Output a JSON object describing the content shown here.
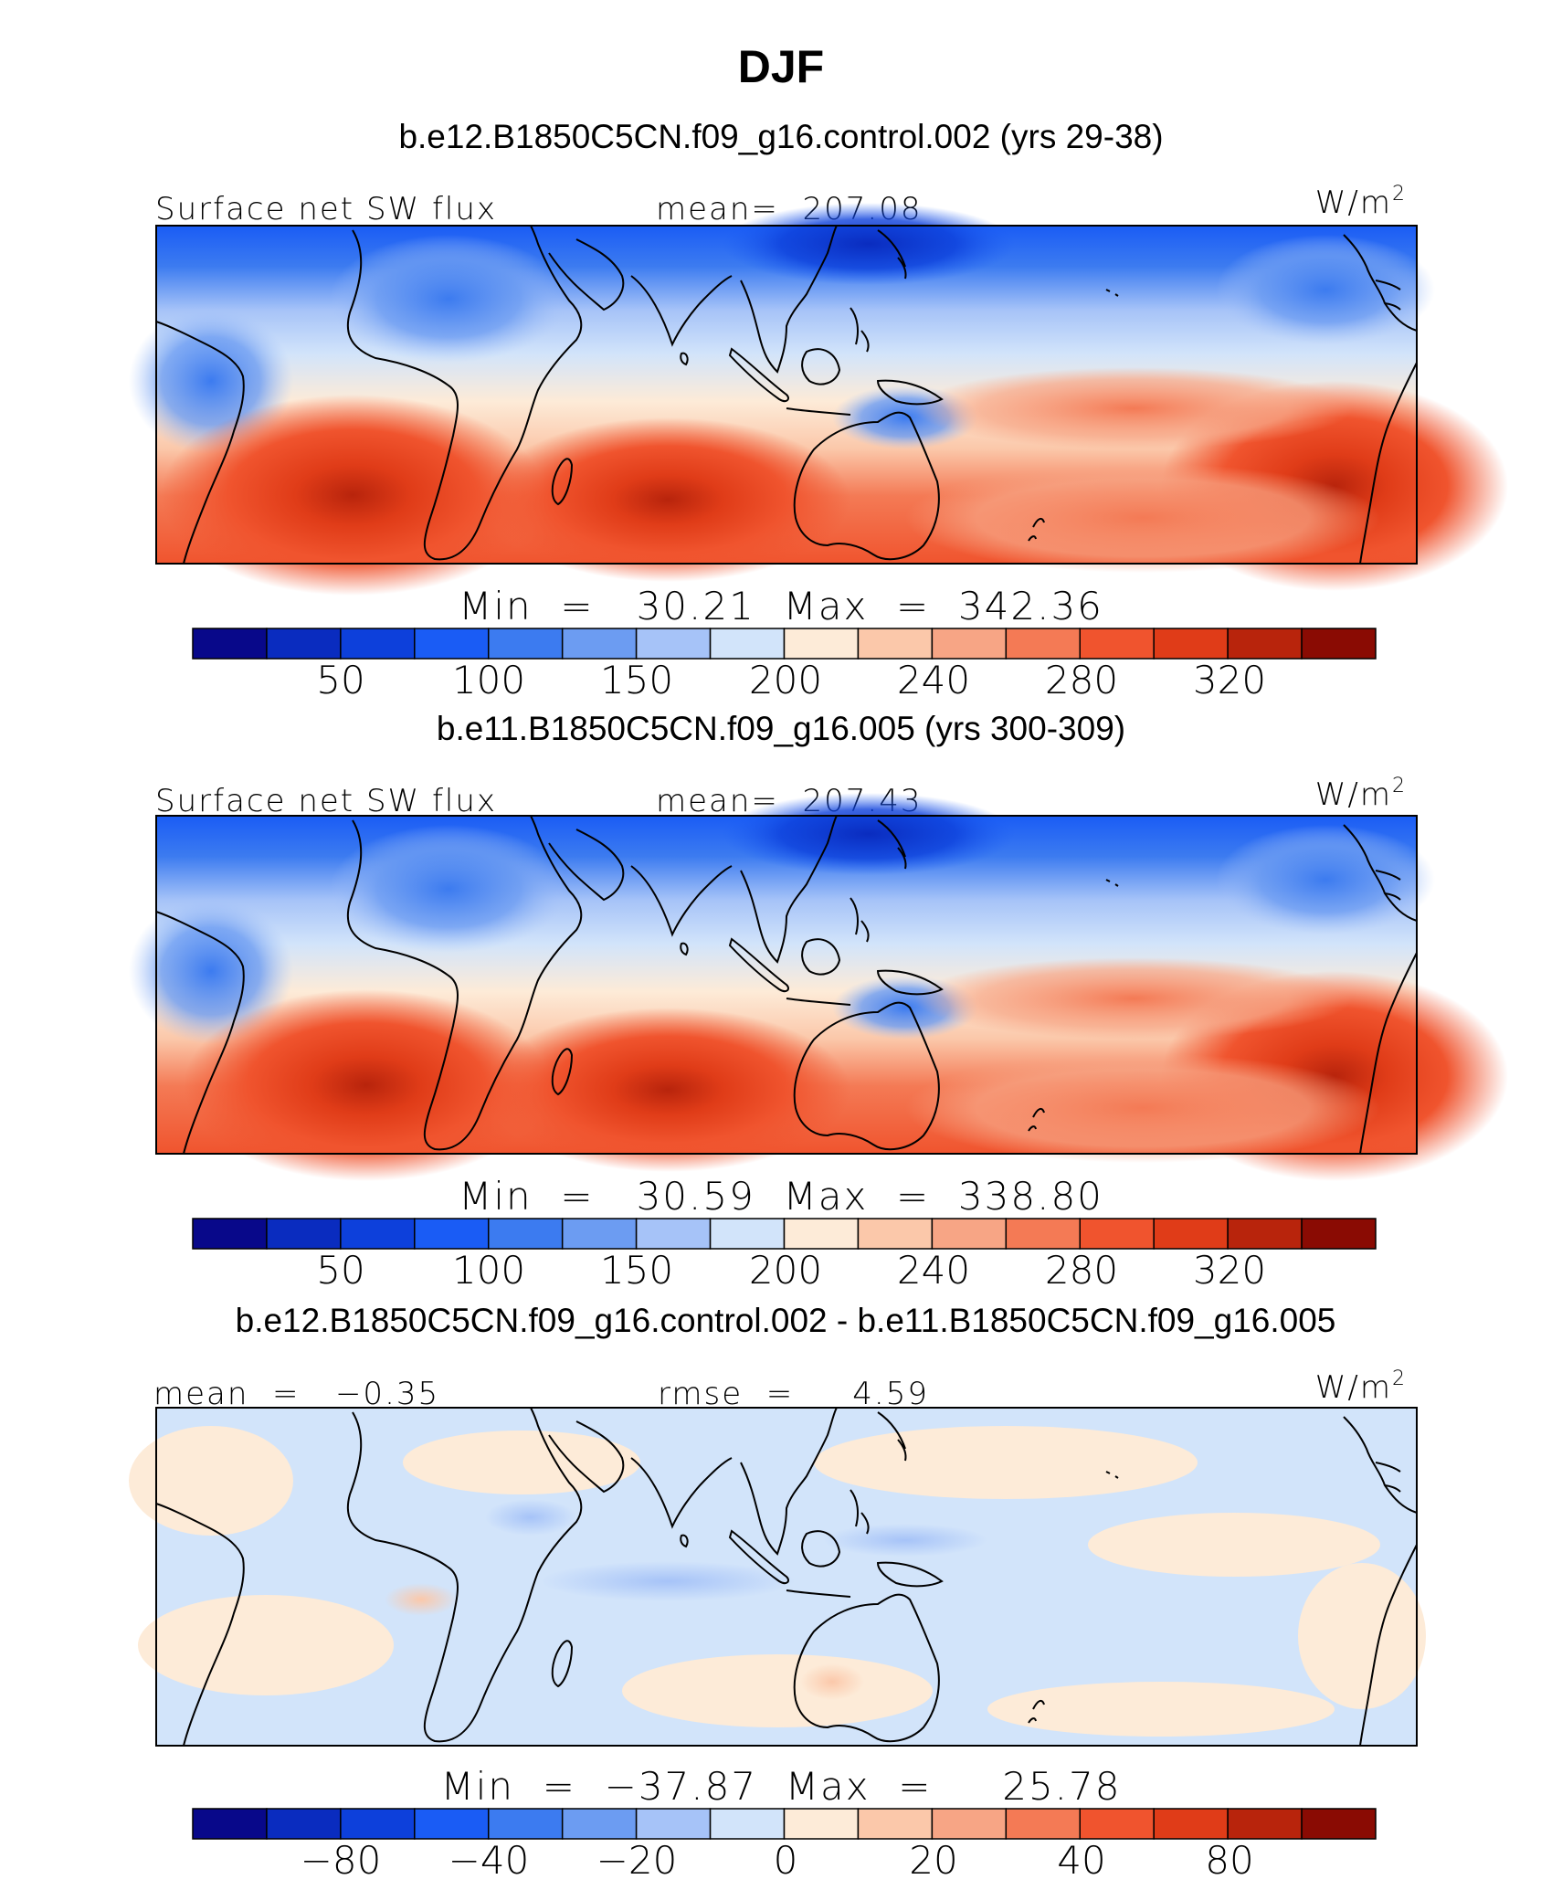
{
  "title": "DJF",
  "colors": {
    "abs_scale": [
      "#08088a",
      "#0a2cbf",
      "#0d40db",
      "#1a5cf5",
      "#3c7bf0",
      "#6c9cf2",
      "#a6c3f8",
      "#d2e4fa",
      "#fdebd8",
      "#fbc8aa",
      "#f7a585",
      "#f47a55",
      "#f0542e",
      "#e03c18",
      "#b8240c",
      "#8a0b03"
    ],
    "diff_scale": [
      "#08088a",
      "#0a2cbf",
      "#0d40db",
      "#1a5cf5",
      "#3c7bf0",
      "#6c9cf2",
      "#a6c3f8",
      "#d2e4fa",
      "#fdebd8",
      "#fbc8aa",
      "#f7a585",
      "#f47a55",
      "#f0542e",
      "#e03c18",
      "#b8240c",
      "#8a0b03"
    ]
  },
  "panels": [
    {
      "case_title": "b.e12.B1850C5CN.f09_g16.control.002 (yrs 29-38)",
      "left_label": "Surface net SW flux",
      "center_label": "mean=  207.08",
      "units": "W/m",
      "units_sup": "2",
      "minmax": "Min  =   30.21  Max  =  342.36",
      "colorbar_ticks": [
        "50",
        "100",
        "150",
        "200",
        "240",
        "280",
        "320"
      ]
    },
    {
      "case_title": "b.e11.B1850C5CN.f09_g16.005 (yrs 300-309)",
      "left_label": "Surface net SW flux",
      "center_label": "mean=  207.43",
      "units": "W/m",
      "units_sup": "2",
      "minmax": "Min  =   30.59  Max  =  338.80",
      "colorbar_ticks": [
        "50",
        "100",
        "150",
        "200",
        "240",
        "280",
        "320"
      ]
    },
    {
      "case_title": "b.e12.B1850C5CN.f09_g16.control.002 - b.e11.B1850C5CN.f09_g16.005",
      "left_label": "mean  =   −0.35",
      "center_label": "rmse  =     4.59",
      "units": "W/m",
      "units_sup": "2",
      "minmax": "Min  =  −37.87  Max  =     25.78",
      "colorbar_ticks": [
        "−80",
        "−40",
        "−20",
        "0",
        "20",
        "40",
        "80"
      ]
    }
  ],
  "chart_data": [
    {
      "type": "heatmap",
      "title": "b.e12.B1850C5CN.f09_g16.control.002 (yrs 29-38)",
      "variable": "Surface net SW flux",
      "units": "W/m2",
      "mean": 207.08,
      "min": 30.21,
      "max": 342.36,
      "colorbar_levels": [
        50,
        100,
        150,
        200,
        240,
        280,
        320
      ]
    },
    {
      "type": "heatmap",
      "title": "b.e11.B1850C5CN.f09_g16.005 (yrs 300-309)",
      "variable": "Surface net SW flux",
      "units": "W/m2",
      "mean": 207.43,
      "min": 30.59,
      "max": 338.8,
      "colorbar_levels": [
        50,
        100,
        150,
        200,
        240,
        280,
        320
      ]
    },
    {
      "type": "heatmap",
      "title": "b.e12.B1850C5CN.f09_g16.control.002 - b.e11.B1850C5CN.f09_g16.005",
      "units": "W/m2",
      "mean": -0.35,
      "rmse": 4.59,
      "min": -37.87,
      "max": 25.78,
      "colorbar_levels": [
        -80,
        -40,
        -20,
        0,
        20,
        40,
        80
      ]
    }
  ]
}
